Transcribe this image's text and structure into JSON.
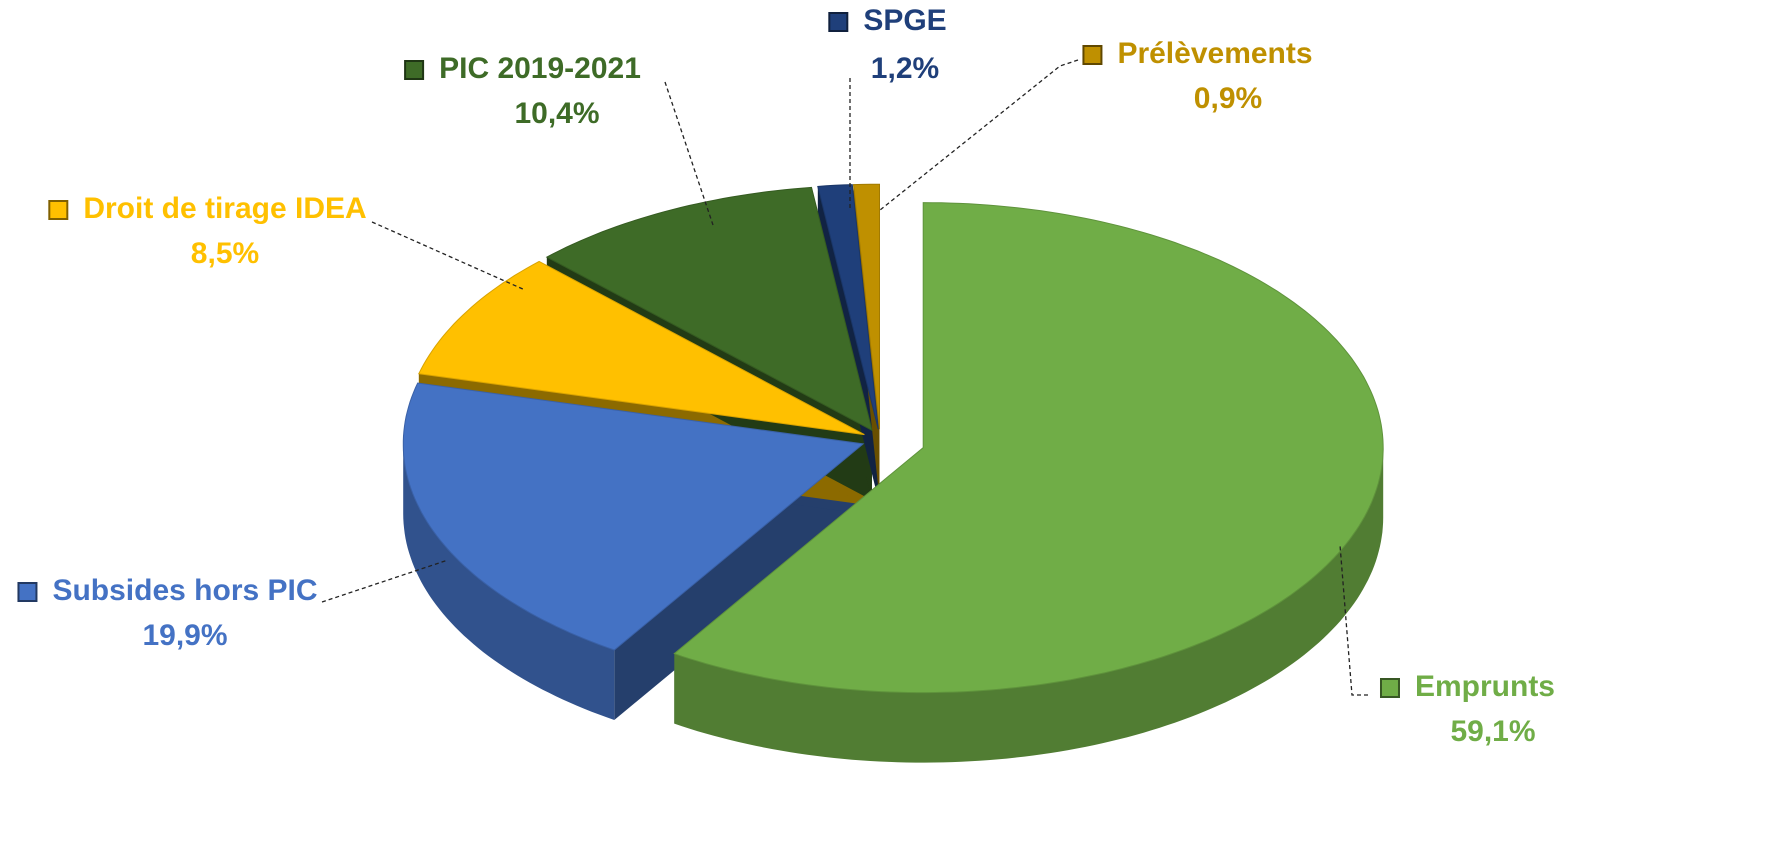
{
  "chart_data": {
    "type": "pie",
    "categories": [
      "Emprunts",
      "Subsides hors PIC",
      "Droit de tirage IDEA",
      "PIC 2019-2021",
      "SPGE",
      "Prélèvements"
    ],
    "values": [
      59.1,
      19.9,
      8.5,
      10.4,
      1.2,
      0.9
    ],
    "value_labels": [
      "59,1%",
      "19,9%",
      "8,5%",
      "10,4%",
      "1,2%",
      "0,9%"
    ],
    "colors": [
      "#70ad47",
      "#4472c4",
      "#ffc000",
      "#3e6b27",
      "#1f3f7a",
      "#bf9000"
    ]
  }
}
